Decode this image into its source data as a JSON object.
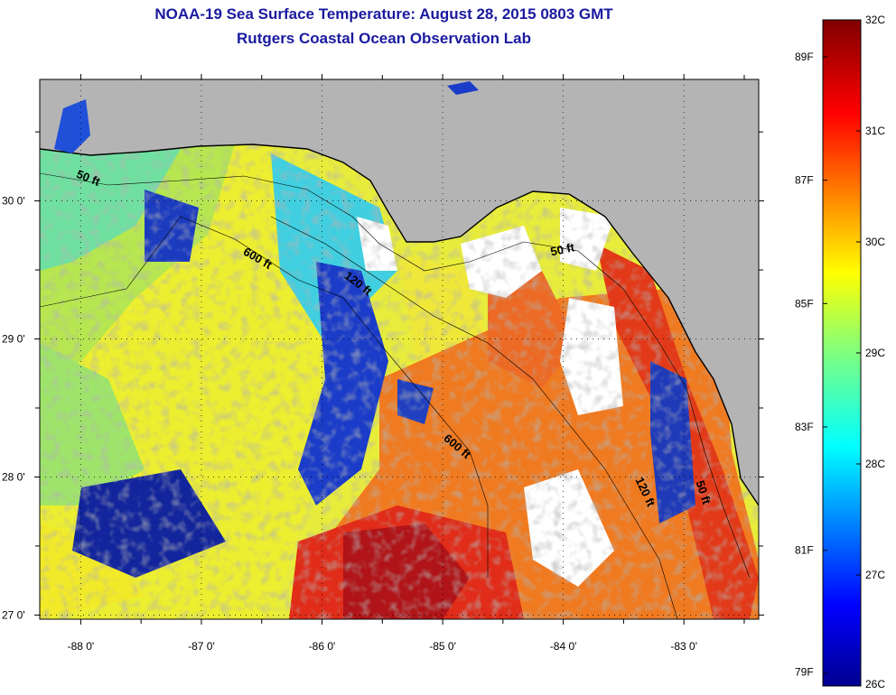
{
  "title": "NOAA-19 Sea Surface Temperature:  August 28, 2015 0803 GMT",
  "subtitle": "Rutgers Coastal Ocean Observation Lab",
  "chart_data": {
    "type": "heatmap",
    "title": "NOAA-19 Sea Surface Temperature:  August 28, 2015 0803 GMT",
    "subtitle": "Rutgers Coastal Ocean Observation Lab",
    "xlim": [
      -88.34,
      -82.38
    ],
    "ylim": [
      26.97,
      30.88
    ],
    "x_ticks": [
      {
        "value": -88,
        "label": "-88 0'"
      },
      {
        "value": -87,
        "label": "-87 0'"
      },
      {
        "value": -86,
        "label": "-86 0'"
      },
      {
        "value": -85,
        "label": "-85 0'"
      },
      {
        "value": -84,
        "label": "-84 0'"
      },
      {
        "value": -83,
        "label": "-83 0'"
      }
    ],
    "y_ticks": [
      {
        "value": 30,
        "label": "30 0'"
      },
      {
        "value": 29,
        "label": "29 0'"
      },
      {
        "value": 28,
        "label": "28 0'"
      },
      {
        "value": 27,
        "label": "27 0'"
      }
    ],
    "grid": true,
    "contours": [
      {
        "label": "50 ft",
        "lon": -87.95,
        "lat": 30.14,
        "angle": 22
      },
      {
        "label": "600 ft",
        "lon": -86.55,
        "lat": 29.56,
        "angle": 30
      },
      {
        "label": "120 ft",
        "lon": -85.72,
        "lat": 29.38,
        "angle": 38
      },
      {
        "label": "50 ft",
        "lon": -84.0,
        "lat": 29.62,
        "angle": -12
      },
      {
        "label": "600 ft",
        "lon": -84.9,
        "lat": 28.2,
        "angle": 40
      },
      {
        "label": "120 ft",
        "lon": -83.35,
        "lat": 27.88,
        "angle": 65
      },
      {
        "label": "50 ft",
        "lon": -82.87,
        "lat": 27.88,
        "angle": 72
      }
    ],
    "colorbar": {
      "celsius": [
        {
          "value": 32,
          "label": "32C"
        },
        {
          "value": 31,
          "label": "31C"
        },
        {
          "value": 30,
          "label": "30C"
        },
        {
          "value": 29,
          "label": "29C"
        },
        {
          "value": 28,
          "label": "28C"
        },
        {
          "value": 27,
          "label": "27C"
        },
        {
          "value": 26,
          "label": "26C"
        }
      ],
      "fahrenheit": [
        {
          "value": 89,
          "label": "89F"
        },
        {
          "value": 87,
          "label": "87F"
        },
        {
          "value": 85,
          "label": "85F"
        },
        {
          "value": 83,
          "label": "83F"
        },
        {
          "value": 81,
          "label": "81F"
        },
        {
          "value": 79,
          "label": "79F"
        }
      ],
      "min_c": 26,
      "max_c": 32,
      "colormap": "jet"
    },
    "colors": {
      "land": "#b4b4b4",
      "cloud": "#ffffff",
      "coast": "#000000"
    }
  }
}
